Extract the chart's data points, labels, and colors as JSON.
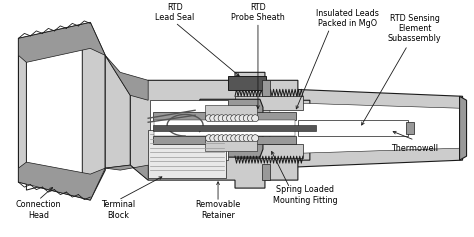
{
  "bg_color": "#ffffff",
  "fig_bg": "#ffffff",
  "labels": {
    "rtd_lead_seal": "RTD\nLead Seal",
    "rtd_probe_sheath": "RTD\nProbe Sheath",
    "insulated_leads": "Insulated Leads\nPacked in MgO",
    "rtd_sensing": "RTD Sensing\nElement\nSubassembly",
    "thermowell": "Thermowell",
    "spring_loaded": "Spring Loaded\nMounting Fitting",
    "removable_retainer": "Removable\nRetainer",
    "terminal_block": "Terminal\nBlock",
    "connection_head": "Connection\nHead"
  },
  "line_color": "#1a1a1a",
  "fill_light": "#cccccc",
  "fill_mid": "#999999",
  "fill_dark": "#555555",
  "fill_white": "#ffffff",
  "fill_lighter": "#e8e8e8",
  "text_color": "#000000",
  "font_size": 5.8
}
